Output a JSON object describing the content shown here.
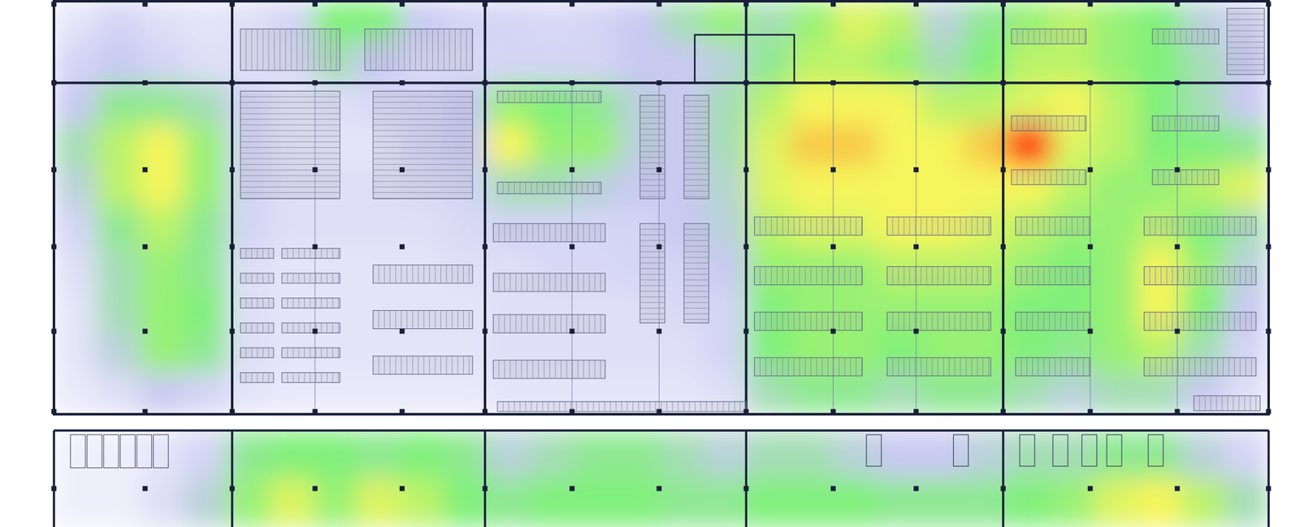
{
  "chart_data": [
    {
      "type": "heatmap",
      "tick_labels": false,
      "zlim": [
        0,
        4
      ],
      "cells": [
        [
          0.5,
          0.8,
          0.6,
          0.5,
          0.6,
          0.8,
          2,
          2,
          1,
          0.8,
          0.8,
          0.7,
          0.8,
          1,
          1.5,
          2.2,
          1.5,
          2.2,
          2.8,
          2.5,
          1.2,
          1.8,
          2.2,
          2.5,
          2.2,
          2,
          1.2,
          0.8
        ],
        [
          0.8,
          1,
          0.8,
          0.6,
          0.6,
          0.7,
          1.5,
          1,
          0.7,
          0.7,
          0.8,
          0.8,
          0.8,
          1,
          1,
          1.2,
          1.8,
          2.5,
          2.5,
          2.2,
          1.5,
          2,
          2.5,
          2.5,
          2.2,
          2,
          1.5,
          1
        ],
        [
          1,
          1.8,
          1.8,
          1.5,
          0.8,
          0.5,
          0.6,
          0.7,
          0.8,
          1,
          2.2,
          2,
          1.8,
          1.2,
          1,
          1.5,
          2.5,
          3,
          3,
          3,
          2.5,
          2.5,
          2.8,
          3,
          2.5,
          2,
          1.5,
          1
        ],
        [
          1.5,
          2.5,
          3,
          2.2,
          0.8,
          0.5,
          0.5,
          0.5,
          0.8,
          1,
          3,
          2.2,
          2.2,
          1.2,
          1,
          1.5,
          2.8,
          3.2,
          3.2,
          3,
          3,
          3.2,
          4,
          2.8,
          2.5,
          2,
          2,
          1.8
        ],
        [
          1.2,
          2.5,
          3,
          2.2,
          0.8,
          0.6,
          0.6,
          0.6,
          0.7,
          0.8,
          1.5,
          1.5,
          1.2,
          1,
          1,
          1.3,
          2.8,
          3,
          3,
          3,
          3,
          3,
          3,
          2.5,
          2.2,
          2.2,
          2.5,
          2.8
        ],
        [
          0.8,
          1.8,
          2.5,
          1.8,
          0.8,
          0.6,
          0.6,
          0.6,
          0.6,
          0.7,
          0.8,
          0.8,
          0.8,
          0.8,
          1,
          1.2,
          2.5,
          2.8,
          2.8,
          3,
          3,
          2.8,
          2.5,
          2.2,
          2.2,
          2.5,
          2,
          1.5
        ],
        [
          0.6,
          1.5,
          2.2,
          1.8,
          0.6,
          0.5,
          0.5,
          0.5,
          0.5,
          0.6,
          0.6,
          0.7,
          0.7,
          0.8,
          0.8,
          1,
          2.2,
          2.2,
          2.2,
          2.5,
          2.5,
          2.5,
          2.2,
          2,
          2.2,
          3,
          2.2,
          1.2
        ],
        [
          0.5,
          1.5,
          2.2,
          2,
          0.6,
          0.5,
          0.5,
          0.5,
          0.5,
          0.5,
          0.6,
          0.6,
          0.6,
          0.6,
          0.7,
          0.8,
          2,
          2.2,
          2.2,
          2.2,
          2.2,
          2.2,
          2,
          2,
          2.2,
          3,
          2,
          1
        ],
        [
          0.5,
          1.2,
          2.2,
          1.8,
          0.6,
          0.5,
          0.5,
          0.5,
          0.5,
          0.5,
          0.6,
          0.6,
          0.6,
          0.6,
          0.6,
          0.8,
          2,
          2.2,
          2.2,
          2,
          2.2,
          2.2,
          2,
          1.8,
          2.2,
          2.5,
          1.5,
          0.8
        ],
        [
          0.4,
          0.6,
          1,
          0.8,
          0.5,
          0.4,
          0.4,
          0.4,
          0.4,
          0.4,
          0.5,
          0.5,
          0.5,
          0.5,
          0.5,
          0.6,
          1.5,
          1.8,
          1.8,
          1.5,
          1.8,
          1.8,
          1.5,
          1.2,
          1.5,
          1.5,
          1,
          0.6
        ]
      ]
    },
    {
      "type": "heatmap",
      "tick_labels": false,
      "zlim": [
        0,
        4
      ],
      "cells": [
        [
          0.3,
          0.3,
          0.5,
          0.8,
          1.8,
          2,
          2,
          1.8,
          2,
          1.8,
          1.2,
          1.5,
          1.8,
          1.8,
          1.5,
          1.2,
          1.5,
          1.5,
          1.2,
          1,
          1,
          1.2,
          1.5,
          1.5,
          1.8,
          1.8,
          1.2,
          0.8
        ],
        [
          0.3,
          0.3,
          0.6,
          1.2,
          2.2,
          2.8,
          2.2,
          2.8,
          2.5,
          2,
          1.8,
          2,
          2,
          2,
          1.8,
          1.8,
          2,
          2,
          2,
          1.8,
          1.8,
          1.8,
          2,
          2.2,
          2.8,
          3,
          2.5,
          1.5
        ]
      ]
    }
  ]
}
